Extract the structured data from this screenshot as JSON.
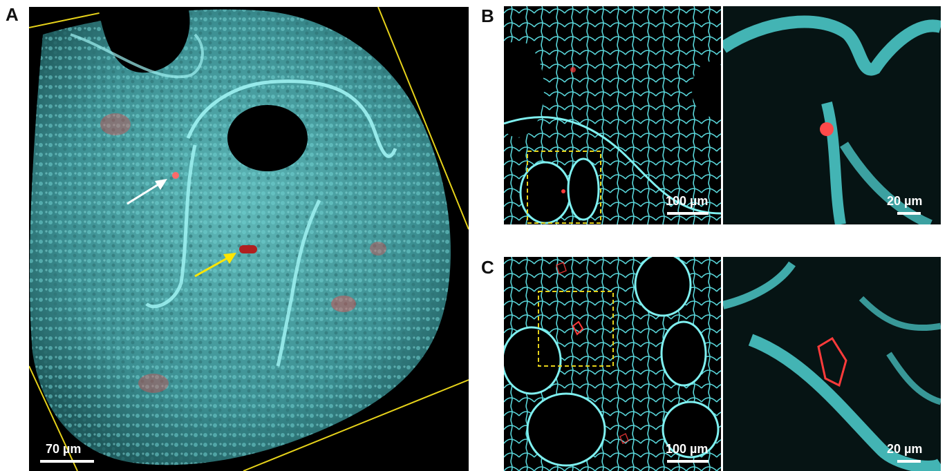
{
  "figure": {
    "panels": {
      "A": {
        "label": "A",
        "scalebar_label": "70 µm"
      },
      "B": {
        "label": "B",
        "left_scalebar_label": "100 µm",
        "right_scalebar_label": "20 µm"
      },
      "C": {
        "label": "C",
        "left_scalebar_label": "100 µm",
        "right_scalebar_label": "20 µm"
      }
    },
    "colors": {
      "tissue_cyan": "#4fd0d0",
      "marker_red": "#ff3b3b",
      "outline_yellow": "#e6d21a",
      "arrow_white": "#ffffff",
      "arrow_yellow": "#ffe600"
    }
  }
}
